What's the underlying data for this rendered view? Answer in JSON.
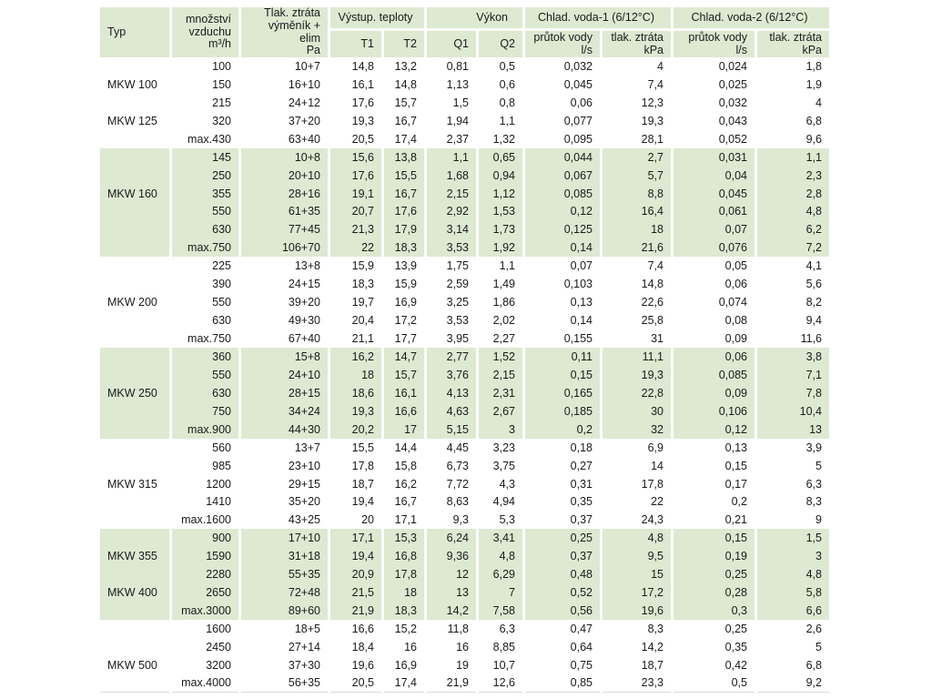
{
  "header": {
    "typ": "Typ",
    "mnozstvi": "množství\nvzduchu\nm³/h",
    "tlak": "Tlak. ztráta\nvýměník + elim\nPa",
    "vystup": "Výstup. teploty",
    "t1": "T1",
    "t2": "T2",
    "vykon": "Výkon",
    "q1": "Q1",
    "q2": "Q2",
    "voda1": "Chlad. voda-1 (6/12°C)",
    "voda2": "Chlad. voda-2 (6/12°C)",
    "prutok": "průtok vody\nl/s",
    "ztrata": "tlak. ztráta\nkPa"
  },
  "colors": {
    "row_green": "#dde9d1",
    "row_white": "#ffffff",
    "text": "#1a1a1a"
  },
  "table": {
    "blocks": [
      {
        "bg": "white",
        "rows": [
          [
            "",
            "100",
            "10+7",
            "14,8",
            "13,2",
            "0,81",
            "0,5",
            "0,032",
            "4",
            "0,024",
            "1,8"
          ],
          [
            "MKW 100",
            "150",
            "16+10",
            "16,1",
            "14,8",
            "1,13",
            "0,6",
            "0,045",
            "7,4",
            "0,025",
            "1,9"
          ],
          [
            "",
            "215",
            "24+12",
            "17,6",
            "15,7",
            "1,5",
            "0,8",
            "0,06",
            "12,3",
            "0,032",
            "4"
          ],
          [
            "MKW 125",
            "320",
            "37+20",
            "19,3",
            "16,7",
            "1,94",
            "1,1",
            "0,077",
            "19,3",
            "0,043",
            "6,8"
          ],
          [
            "",
            "max.430",
            "63+40",
            "20,5",
            "17,4",
            "2,37",
            "1,32",
            "0,095",
            "28,1",
            "0,052",
            "9,6"
          ]
        ]
      },
      {
        "bg": "green",
        "rows": [
          [
            "",
            "145",
            "10+8",
            "15,6",
            "13,8",
            "1,1",
            "0,65",
            "0,044",
            "2,7",
            "0,031",
            "1,1"
          ],
          [
            "",
            "250",
            "20+10",
            "17,6",
            "15,5",
            "1,68",
            "0,94",
            "0,067",
            "5,7",
            "0,04",
            "2,3"
          ],
          [
            "MKW 160",
            "355",
            "28+16",
            "19,1",
            "16,7",
            "2,15",
            "1,12",
            "0,085",
            "8,8",
            "0,045",
            "2,8"
          ],
          [
            "",
            "550",
            "61+35",
            "20,7",
            "17,6",
            "2,92",
            "1,53",
            "0,12",
            "16,4",
            "0,061",
            "4,8"
          ],
          [
            "",
            "630",
            "77+45",
            "21,3",
            "17,9",
            "3,14",
            "1,73",
            "0,125",
            "18",
            "0,07",
            "6,2"
          ],
          [
            "",
            "max.750",
            "106+70",
            "22",
            "18,3",
            "3,53",
            "1,92",
            "0,14",
            "21,6",
            "0,076",
            "7,2"
          ]
        ]
      },
      {
        "bg": "white",
        "rows": [
          [
            "",
            "225",
            "13+8",
            "15,9",
            "13,9",
            "1,75",
            "1,1",
            "0,07",
            "7,4",
            "0,05",
            "4,1"
          ],
          [
            "",
            "390",
            "24+15",
            "18,3",
            "15,9",
            "2,59",
            "1,49",
            "0,103",
            "14,8",
            "0,06",
            "5,6"
          ],
          [
            "MKW 200",
            "550",
            "39+20",
            "19,7",
            "16,9",
            "3,25",
            "1,86",
            "0,13",
            "22,6",
            "0,074",
            "8,2"
          ],
          [
            "",
            "630",
            "49+30",
            "20,4",
            "17,2",
            "3,53",
            "2,02",
            "0,14",
            "25,8",
            "0,08",
            "9,4"
          ],
          [
            "",
            "max.750",
            "67+40",
            "21,1",
            "17,7",
            "3,95",
            "2,27",
            "0,155",
            "31",
            "0,09",
            "11,6"
          ]
        ]
      },
      {
        "bg": "green",
        "rows": [
          [
            "",
            "360",
            "15+8",
            "16,2",
            "14,7",
            "2,77",
            "1,52",
            "0,11",
            "11,1",
            "0,06",
            "3,8"
          ],
          [
            "",
            "550",
            "24+10",
            "18",
            "15,7",
            "3,76",
            "2,15",
            "0,15",
            "19,3",
            "0,085",
            "7,1"
          ],
          [
            "MKW 250",
            "630",
            "28+15",
            "18,6",
            "16,1",
            "4,13",
            "2,31",
            "0,165",
            "22,8",
            "0,09",
            "7,8"
          ],
          [
            "",
            "750",
            "34+24",
            "19,3",
            "16,6",
            "4,63",
            "2,67",
            "0,185",
            "30",
            "0,106",
            "10,4"
          ],
          [
            "",
            "max.900",
            "44+30",
            "20,2",
            "17",
            "5,15",
            "3",
            "0,2",
            "32",
            "0,12",
            "13"
          ]
        ]
      },
      {
        "bg": "white",
        "rows": [
          [
            "",
            "560",
            "13+7",
            "15,5",
            "14,4",
            "4,45",
            "3,23",
            "0,18",
            "6,9",
            "0,13",
            "3,9"
          ],
          [
            "",
            "985",
            "23+10",
            "17,8",
            "15,8",
            "6,73",
            "3,75",
            "0,27",
            "14",
            "0,15",
            "5"
          ],
          [
            "MKW 315",
            "1200",
            "29+15",
            "18,7",
            "16,2",
            "7,72",
            "4,3",
            "0,31",
            "17,8",
            "0,17",
            "6,3"
          ],
          [
            "",
            "1410",
            "35+20",
            "19,4",
            "16,7",
            "8,63",
            "4,94",
            "0,35",
            "22",
            "0,2",
            "8,3"
          ],
          [
            "",
            "max.1600",
            "43+25",
            "20",
            "17,1",
            "9,3",
            "5,3",
            "0,37",
            "24,3",
            "0,21",
            "9"
          ]
        ]
      },
      {
        "bg": "green",
        "rows": [
          [
            "",
            "900",
            "17+10",
            "17,1",
            "15,3",
            "6,24",
            "3,41",
            "0,25",
            "4,8",
            "0,15",
            "1,5"
          ],
          [
            "MKW 355",
            "1590",
            "31+18",
            "19,4",
            "16,8",
            "9,36",
            "4,8",
            "0,37",
            "9,5",
            "0,19",
            "3"
          ],
          [
            "",
            "2280",
            "55+35",
            "20,9",
            "17,8",
            "12",
            "6,29",
            "0,48",
            "15",
            "0,25",
            "4,8"
          ],
          [
            "MKW 400",
            "2650",
            "72+48",
            "21,5",
            "18",
            "13",
            "7",
            "0,52",
            "17,2",
            "0,28",
            "5,8"
          ],
          [
            "",
            "max.3000",
            "89+60",
            "21,9",
            "18,3",
            "14,2",
            "7,58",
            "0,56",
            "19,6",
            "0,3",
            "6,6"
          ]
        ]
      },
      {
        "bg": "white",
        "rows": [
          [
            "",
            "1600",
            "18+5",
            "16,6",
            "15,2",
            "11,8",
            "6,3",
            "0,47",
            "8,3",
            "0,25",
            "2,6"
          ],
          [
            "",
            "2450",
            "27+14",
            "18,4",
            "16",
            "16",
            "8,85",
            "0,64",
            "14,2",
            "0,35",
            "5"
          ],
          [
            "MKW 500",
            "3200",
            "37+30",
            "19,6",
            "16,9",
            "19",
            "10,7",
            "0,75",
            "18,7",
            "0,42",
            "6,8"
          ],
          [
            "",
            "max.4000",
            "56+35",
            "20,5",
            "17,4",
            "21,9",
            "12,6",
            "0,85",
            "23,3",
            "0,5",
            "9,2"
          ]
        ]
      }
    ]
  }
}
